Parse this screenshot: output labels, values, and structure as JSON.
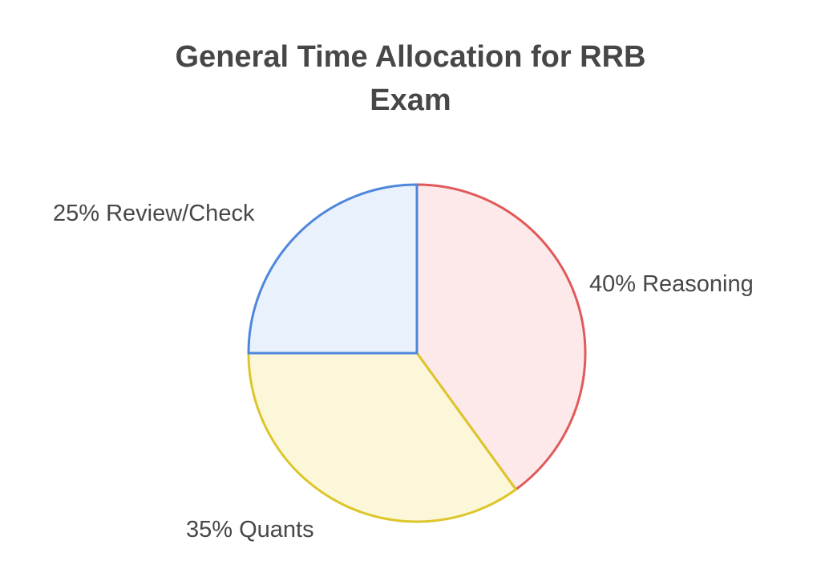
{
  "chart_data": {
    "type": "pie",
    "title_lines": [
      "General Time Allocation for RRB",
      "Exam"
    ],
    "slices": [
      {
        "label": "40% Reasoning",
        "value": 40,
        "fill": "#fde9e9",
        "stroke": "#e05a5a"
      },
      {
        "label": "35% Quants",
        "value": 35,
        "fill": "#fdf7da",
        "stroke": "#dcc62a"
      },
      {
        "label": "25% Review/Check",
        "value": 25,
        "fill": "#e9f1fc",
        "stroke": "#4f86dc"
      }
    ]
  }
}
